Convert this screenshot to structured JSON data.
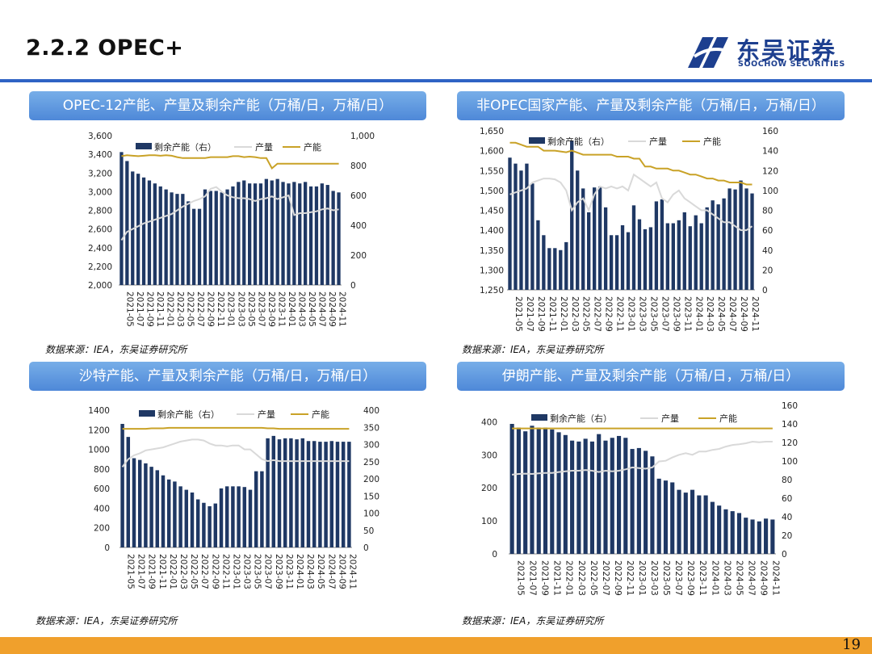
{
  "header": {
    "title": "2.2.2 OPEC+",
    "logo_cn": "东吴证券",
    "logo_en": "SOOCHOW SECURITIES",
    "page_number": "19"
  },
  "colors": {
    "bar": "#1f3864",
    "production": "#d9d9d9",
    "capacity": "#c9a227",
    "accent": "#2f63c4"
  },
  "panels": [
    {
      "title": "OPEC-12产能、产量及剩余产能（万桶/日，万桶/日）",
      "source": "数据来源：IEA，东吴证券研究所"
    },
    {
      "title": "非OPEC国家产能、产量及剩余产能（万桶/日，万桶/日）",
      "source": "数据来源：IEA，东吴证券研究所"
    },
    {
      "title": "沙特产能、产量及剩余产能（万桶/日，万桶/日）",
      "source": "数据来源：IEA，东吴证券研究所"
    },
    {
      "title": "伊朗产能、产量及剩余产能（万桶/日，万桶/日）",
      "source": "数据来源：IEA，东吴证券研究所"
    }
  ],
  "chart_data": [
    {
      "type": "bar+line",
      "legend": [
        "剩余产能（右）",
        "产量",
        "产能"
      ],
      "x_ticks": [
        "2021-05",
        "2021-07",
        "2021-09",
        "2021-11",
        "2022-01",
        "2022-03",
        "2022-05",
        "2022-07",
        "2022-09",
        "2022-11",
        "2023-01",
        "2023-03",
        "2023-05",
        "2023-07",
        "2023-09",
        "2023-11",
        "2024-01",
        "2024-03",
        "2024-05",
        "2024-07",
        "2024-09",
        "2024-11"
      ],
      "left_axis": {
        "min": 2000,
        "max": 3600,
        "ticks": [
          "2,000",
          "2,200",
          "2,400",
          "2,600",
          "2,800",
          "3,000",
          "3,200",
          "3,400",
          "3,600"
        ]
      },
      "right_axis": {
        "min": 0,
        "max": 1000,
        "ticks": [
          "0",
          "200",
          "400",
          "600",
          "800",
          "1,000"
        ]
      },
      "spare_capacity_right": [
        890,
        830,
        760,
        745,
        720,
        700,
        680,
        660,
        640,
        620,
        610,
        610,
        560,
        510,
        510,
        640,
        630,
        630,
        620,
        640,
        660,
        690,
        700,
        680,
        680,
        680,
        710,
        700,
        710,
        690,
        680,
        690,
        680,
        690,
        660,
        660,
        680,
        670,
        630,
        620
      ],
      "production_left": [
        2480,
        2570,
        2600,
        2630,
        2660,
        2680,
        2700,
        2720,
        2740,
        2760,
        2800,
        2840,
        2870,
        2900,
        2920,
        2950,
        3030,
        3050,
        3000,
        2960,
        2940,
        2930,
        2930,
        2920,
        2900,
        2920,
        2930,
        2950,
        2920,
        2940,
        2960,
        2750,
        2770,
        2770,
        2780,
        2790,
        2810,
        2820,
        2800,
        2810
      ],
      "capacity_left": [
        3380,
        3390,
        3385,
        3380,
        3385,
        3390,
        3390,
        3385,
        3390,
        3385,
        3370,
        3360,
        3360,
        3360,
        3360,
        3360,
        3370,
        3370,
        3370,
        3370,
        3380,
        3380,
        3370,
        3375,
        3370,
        3360,
        3360,
        3250,
        3300,
        3300,
        3300,
        3300,
        3300,
        3300,
        3300,
        3300,
        3300,
        3300,
        3300,
        3300
      ]
    },
    {
      "type": "bar+line",
      "legend": [
        "剩余产能（右）",
        "产量",
        "产能"
      ],
      "x_ticks": [
        "2021-05",
        "2021-07",
        "2021-09",
        "2021-11",
        "2022-01",
        "2022-03",
        "2022-05",
        "2022-07",
        "2022-09",
        "2022-11",
        "2023-01",
        "2023-03",
        "2023-05",
        "2023-07",
        "2023-09",
        "2023-11",
        "2024-01",
        "2024-03",
        "2024-05",
        "2024-07",
        "2024-09",
        "2024-11"
      ],
      "left_axis": {
        "min": 1250,
        "max": 1650,
        "ticks": [
          "1,250",
          "1,300",
          "1,350",
          "1,400",
          "1,450",
          "1,500",
          "1,550",
          "1,600",
          "1,650"
        ]
      },
      "right_axis": {
        "min": 0,
        "max": 160,
        "ticks": [
          "0",
          "20",
          "40",
          "60",
          "80",
          "100",
          "120",
          "140",
          "160"
        ]
      },
      "spare_capacity_right": [
        133,
        127,
        120,
        127,
        107,
        70,
        55,
        42,
        42,
        40,
        48,
        150,
        120,
        102,
        78,
        103,
        104,
        83,
        55,
        55,
        65,
        58,
        85,
        71,
        61,
        63,
        89,
        91,
        67,
        67,
        70,
        78,
        64,
        75,
        67,
        83,
        90,
        86,
        92,
        102,
        101,
        110,
        102,
        97
      ],
      "production_left": [
        1490,
        1495,
        1500,
        1505,
        1520,
        1525,
        1530,
        1530,
        1528,
        1520,
        1500,
        1450,
        1470,
        1480,
        1450,
        1490,
        1510,
        1505,
        1510,
        1505,
        1510,
        1500,
        1540,
        1530,
        1520,
        1510,
        1520,
        1480,
        1470,
        1490,
        1500,
        1480,
        1470,
        1460,
        1450,
        1450,
        1440,
        1430,
        1420,
        1420,
        1410,
        1400,
        1400,
        1410
      ],
      "capacity_left": [
        1620,
        1620,
        1615,
        1610,
        1610,
        1610,
        1600,
        1600,
        1600,
        1598,
        1596,
        1600,
        1595,
        1590,
        1590,
        1590,
        1590,
        1590,
        1590,
        1585,
        1585,
        1585,
        1580,
        1580,
        1560,
        1560,
        1555,
        1555,
        1555,
        1550,
        1550,
        1545,
        1540,
        1540,
        1535,
        1530,
        1530,
        1525,
        1525,
        1520,
        1520,
        1520,
        1515,
        1515
      ]
    },
    {
      "type": "bar+line",
      "legend": [
        "剩余产能（右）",
        "产量",
        "产能"
      ],
      "x_ticks": [
        "2021-05",
        "2021-07",
        "2021-09",
        "2021-11",
        "2022-01",
        "2022-03",
        "2022-05",
        "2022-07",
        "2022-09",
        "2022-11",
        "2023-01",
        "2023-03",
        "2023-05",
        "2023-07",
        "2023-09",
        "2023-11",
        "2024-01",
        "2024-03",
        "2024-05",
        "2024-07",
        "2024-09",
        "2024-11"
      ],
      "left_axis": {
        "min": 0,
        "max": 1400,
        "ticks": [
          "0",
          "200",
          "400",
          "600",
          "800",
          "1000",
          "1200",
          "1400"
        ]
      },
      "right_axis": {
        "min": 0,
        "max": 400,
        "ticks": [
          "0",
          "50",
          "100",
          "150",
          "200",
          "250",
          "300",
          "350",
          "400"
        ]
      },
      "spare_capacity_right": [
        360,
        322,
        260,
        255,
        245,
        235,
        225,
        210,
        198,
        192,
        178,
        168,
        160,
        140,
        130,
        120,
        128,
        172,
        178,
        178,
        178,
        176,
        168,
        222,
        222,
        318,
        325,
        315,
        318,
        318,
        315,
        318,
        310,
        310,
        308,
        308,
        310,
        308,
        308,
        308
      ],
      "production_left": [
        820,
        900,
        940,
        960,
        990,
        1000,
        1010,
        1020,
        1040,
        1060,
        1080,
        1090,
        1100,
        1100,
        1090,
        1060,
        1040,
        1040,
        1030,
        1040,
        1040,
        1000,
        1000,
        950,
        900,
        880,
        890,
        880,
        880,
        880,
        880,
        880,
        880,
        880,
        880,
        880,
        880,
        880,
        880,
        880
      ],
      "capacity_left": [
        1210,
        1210,
        1210,
        1210,
        1210,
        1215,
        1215,
        1215,
        1220,
        1220,
        1220,
        1220,
        1220,
        1220,
        1220,
        1220,
        1220,
        1220,
        1220,
        1220,
        1220,
        1220,
        1220,
        1220,
        1220,
        1215,
        1215,
        1210,
        1210,
        1210,
        1210,
        1210,
        1210,
        1210,
        1210,
        1210,
        1210,
        1210,
        1210,
        1210
      ]
    },
    {
      "type": "bar+line",
      "legend": [
        "剩余产能（右）",
        "产量",
        "产能"
      ],
      "x_ticks": [
        "2021-05",
        "2021-07",
        "2021-09",
        "2021-11",
        "2022-01",
        "2022-03",
        "2022-05",
        "2022-07",
        "2022-09",
        "2022-11",
        "2023-01",
        "2023-03",
        "2023-05",
        "2023-07",
        "2023-09",
        "2023-11",
        "2024-01",
        "2024-03",
        "2024-05",
        "2024-07",
        "2024-09",
        "2024-11"
      ],
      "left_axis": {
        "min": 0,
        "max": 450,
        "ticks": [
          "0",
          "100",
          "200",
          "300",
          "400"
        ]
      },
      "right_axis": {
        "min": 0,
        "max": 160,
        "ticks": [
          "0",
          "20",
          "40",
          "60",
          "80",
          "100",
          "120",
          "140",
          "160"
        ]
      },
      "spare_capacity_right": [
        140,
        136,
        132,
        138,
        136,
        136,
        134,
        131,
        128,
        122,
        121,
        124,
        121,
        129,
        122,
        125,
        127,
        125,
        113,
        114,
        111,
        105,
        81,
        79,
        77,
        69,
        66,
        69,
        63,
        63,
        56,
        52,
        48,
        46,
        44,
        39,
        37,
        35,
        38,
        37
      ],
      "production_left": [
        240,
        242,
        243,
        242,
        244,
        245,
        245,
        248,
        250,
        252,
        252,
        254,
        252,
        248,
        252,
        250,
        252,
        256,
        262,
        260,
        258,
        262,
        280,
        282,
        292,
        300,
        305,
        300,
        310,
        310,
        315,
        318,
        325,
        330,
        332,
        335,
        340,
        338,
        340,
        340
      ],
      "capacity_left": [
        380,
        380,
        380,
        380,
        380,
        380,
        380,
        380,
        380,
        380,
        380,
        380,
        380,
        380,
        380,
        380,
        380,
        380,
        380,
        380,
        380,
        380,
        380,
        380,
        380,
        380,
        380,
        380,
        380,
        380,
        380,
        380,
        380,
        380,
        380,
        380,
        380,
        380,
        380,
        380
      ]
    }
  ]
}
